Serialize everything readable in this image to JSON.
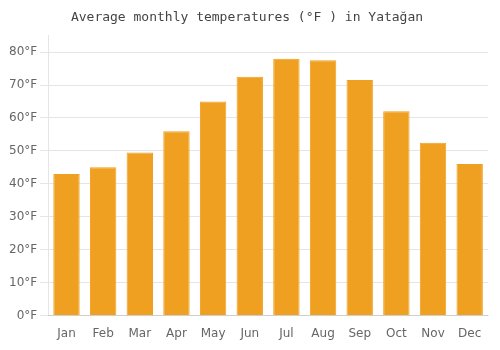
{
  "chart_data": {
    "type": "bar",
    "title": "Average monthly temperatures (°F ) in Yatağan",
    "categories": [
      "Jan",
      "Feb",
      "Mar",
      "Apr",
      "May",
      "Jun",
      "Jul",
      "Aug",
      "Sep",
      "Oct",
      "Nov",
      "Dec"
    ],
    "values": [
      43,
      45,
      49.5,
      56,
      65,
      72.5,
      78,
      77.5,
      71.5,
      62,
      52.5,
      46
    ],
    "color": "#F0A020",
    "ylim": [
      0,
      85
    ],
    "yticks": [
      {
        "value": 0,
        "label": "0°F"
      },
      {
        "value": 10,
        "label": "10°F"
      },
      {
        "value": 20,
        "label": "20°F"
      },
      {
        "value": 30,
        "label": "30°F"
      },
      {
        "value": 40,
        "label": "40°F"
      },
      {
        "value": 50,
        "label": "50°F"
      },
      {
        "value": 60,
        "label": "60°F"
      },
      {
        "value": 70,
        "label": "70°F"
      },
      {
        "value": 80,
        "label": "80°F"
      }
    ],
    "grid": true
  }
}
